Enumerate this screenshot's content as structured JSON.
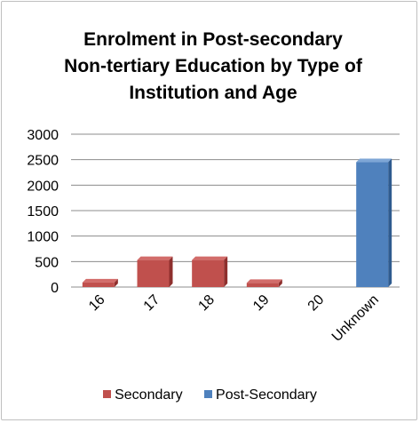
{
  "chart_data": {
    "type": "bar",
    "title_lines": [
      "Enrolment in Post-secondary",
      "Non-tertiary Education by Type of",
      "Institution and Age"
    ],
    "categories": [
      "16",
      "17",
      "18",
      "19",
      "20",
      "Unknown"
    ],
    "series": [
      {
        "name": "Secondary",
        "values": [
          90,
          530,
          530,
          80,
          0,
          0
        ],
        "color": "#c0504d"
      },
      {
        "name": "Post-Secondary",
        "values": [
          0,
          0,
          0,
          0,
          0,
          2450
        ],
        "color": "#4f81bd"
      }
    ],
    "ylim": [
      0,
      3000
    ],
    "yticks": [
      "0",
      "500",
      "1000",
      "1500",
      "2000",
      "2500",
      "3000"
    ],
    "grid": true,
    "legend": "bottom"
  }
}
